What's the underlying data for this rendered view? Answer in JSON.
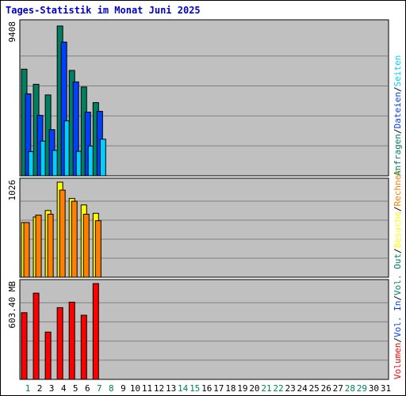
{
  "title": "Tages-Statistik im Monat Juni 2025",
  "colors": {
    "title": "#0000cc",
    "panel_bg": "#c0c0c0",
    "grid": "#808080",
    "day_weekday": "#000000",
    "day_weekend": "#00805c"
  },
  "chart_data": [
    {
      "type": "bar",
      "panel": "top",
      "ymax": 9408,
      "ymax_label": "9408",
      "categories": [
        "1",
        "2",
        "3",
        "4",
        "5",
        "6",
        "7"
      ],
      "series": [
        {
          "name": "Anfragen",
          "color": "#008060",
          "values": [
            6700,
            5750,
            5080,
            9408,
            6620,
            5580,
            4600
          ]
        },
        {
          "name": "Dateien",
          "color": "#0040ff",
          "values": [
            5150,
            3800,
            2900,
            8400,
            5900,
            4000,
            4050
          ]
        },
        {
          "name": "Seiten",
          "color": "#00d0ff",
          "values": [
            1520,
            2180,
            1600,
            3450,
            1540,
            1870,
            2300
          ]
        }
      ],
      "legend": [
        "Anfragen",
        "/",
        "Dateien",
        "/",
        "Seiten"
      ]
    },
    {
      "type": "bar",
      "panel": "middle",
      "ymax": 1026,
      "ymax_label": "1026",
      "categories": [
        "1",
        "2",
        "3",
        "4",
        "5",
        "6",
        "7"
      ],
      "series": [
        {
          "name": "Besuche",
          "color": "#ffff00",
          "values": [
            590,
            650,
            720,
            1026,
            850,
            780,
            690
          ]
        },
        {
          "name": "Rechner",
          "color": "#ff8000",
          "values": [
            590,
            670,
            680,
            940,
            820,
            680,
            610
          ]
        }
      ],
      "legend": [
        "Besuche",
        "/",
        "Rechner"
      ]
    },
    {
      "type": "bar",
      "panel": "bottom",
      "ymax": 603.4,
      "ymax_label": "603.40 MB",
      "categories": [
        "1",
        "2",
        "3",
        "4",
        "5",
        "6",
        "7"
      ],
      "series": [
        {
          "name": "Volumen",
          "color": "#ff0000",
          "values": [
            420,
            543,
            298,
            452,
            486,
            404,
            603.4
          ]
        }
      ],
      "legend": [
        "Volumen",
        "/",
        "Vol. In",
        "/",
        "Vol. Out"
      ]
    }
  ],
  "days": [
    "1",
    "2",
    "3",
    "4",
    "5",
    "6",
    "7",
    "8",
    "9",
    "10",
    "11",
    "12",
    "13",
    "14",
    "15",
    "16",
    "17",
    "18",
    "19",
    "20",
    "21",
    "22",
    "23",
    "24",
    "25",
    "26",
    "27",
    "28",
    "29",
    "30",
    "31"
  ],
  "weekend_days": [
    "1",
    "7",
    "8",
    "14",
    "15",
    "21",
    "22",
    "28",
    "29"
  ],
  "right_legends": [
    {
      "panel": "top",
      "items": [
        {
          "text": "Anfragen",
          "color": "#008060"
        },
        {
          "text": "/",
          "color": "#000000"
        },
        {
          "text": "Dateien",
          "color": "#0040ff"
        },
        {
          "text": "/",
          "color": "#000000"
        },
        {
          "text": "Seiten",
          "color": "#00d0ff"
        }
      ]
    },
    {
      "panel": "bottom",
      "items": [
        {
          "text": "Volumen",
          "color": "#ff0000"
        },
        {
          "text": "/",
          "color": "#000000"
        },
        {
          "text": "Vol. In",
          "color": "#0040ff"
        },
        {
          "text": "/",
          "color": "#000000"
        },
        {
          "text": "Vol. Out",
          "color": "#008060"
        },
        {
          "text": "/",
          "color": "#000000"
        },
        {
          "text": "Besuche",
          "color": "#ffff00"
        },
        {
          "text": "/",
          "color": "#000000"
        },
        {
          "text": "Rechner",
          "color": "#ff8000"
        }
      ]
    }
  ]
}
